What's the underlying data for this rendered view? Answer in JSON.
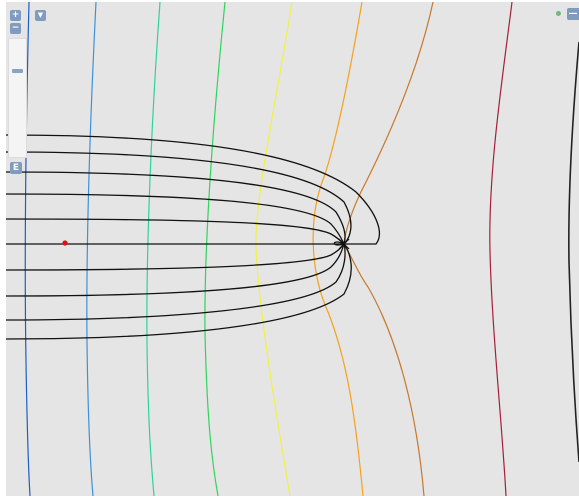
{
  "controls": {
    "zoom_in": "+",
    "zoom_out": "−",
    "menu_icon": "▼",
    "export_label": "E",
    "panel_toggle": "—"
  },
  "colors": {
    "background": "#e5e5e5",
    "field_line": "#111111",
    "charge_point": "#e01010",
    "legend_dot": "#74b48a",
    "control_fill": "#7f9cc0"
  },
  "equipotential_colors": [
    "#1f5fbf",
    "#3d91d8",
    "#2ed39a",
    "#2fd45a",
    "#f3f046",
    "#f5a21a",
    "#c8782c",
    "#a5203a",
    "#222222"
  ],
  "icons": [
    "zoom-in-icon",
    "zoom-out-icon",
    "menu-dropdown-icon",
    "zoom-handle-icon",
    "export-icon",
    "panel-toggle-icon",
    "legend-dot-icon"
  ]
}
